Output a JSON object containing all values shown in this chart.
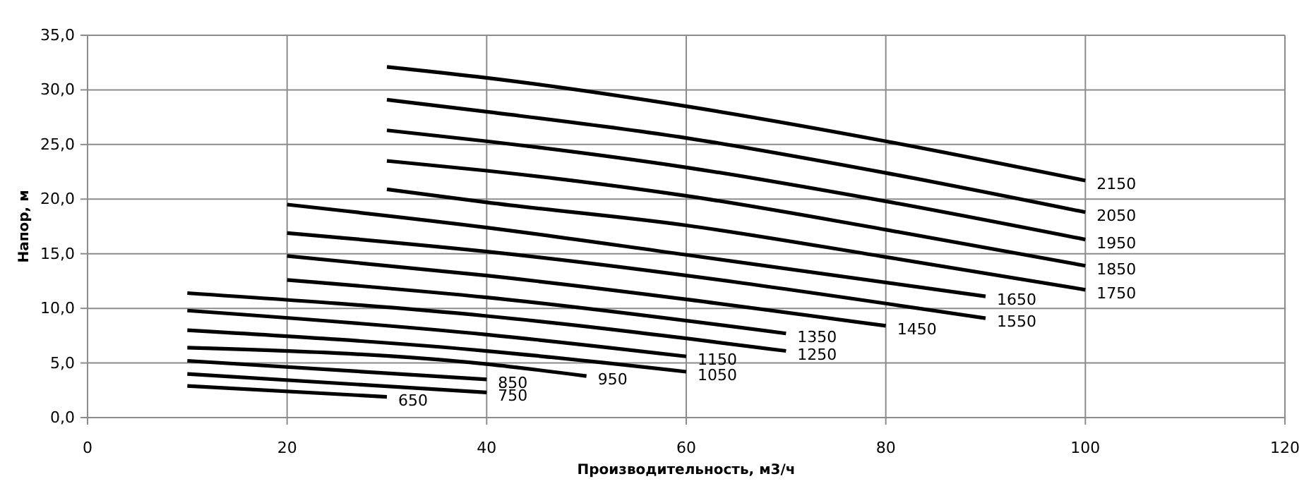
{
  "chart_data": {
    "type": "line",
    "xlabel": "Производительность,  м3/ч",
    "ylabel": "Напор, м",
    "xlim": [
      0,
      120
    ],
    "xticks": [
      0,
      20,
      40,
      60,
      80,
      100,
      120
    ],
    "ylim": [
      0,
      35
    ],
    "yticks": [
      {
        "value": 0,
        "label": "0,0"
      },
      {
        "value": 5,
        "label": "5,0"
      },
      {
        "value": 10,
        "label": "10,0"
      },
      {
        "value": 15,
        "label": "15,0"
      },
      {
        "value": 20,
        "label": "20,0"
      },
      {
        "value": 25,
        "label": "25,0"
      },
      {
        "value": 30,
        "label": "30,0"
      },
      {
        "value": 35,
        "label": "35,0"
      }
    ],
    "grid": true,
    "legend": false,
    "marker": "none",
    "line_style": "solid",
    "series": [
      {
        "name": "650",
        "color": "#000000",
        "x": [
          10,
          30
        ],
        "values": [
          2.9,
          1.9
        ]
      },
      {
        "name": "750",
        "color": "#000000",
        "x": [
          10,
          40
        ],
        "values": [
          4.0,
          2.3
        ]
      },
      {
        "name": "850",
        "color": "#000000",
        "x": [
          10,
          40
        ],
        "values": [
          5.2,
          3.5
        ]
      },
      {
        "name": "950",
        "color": "#000000",
        "x": [
          10,
          40,
          50
        ],
        "values": [
          6.4,
          4.9,
          3.8
        ]
      },
      {
        "name": "1050",
        "color": "#000000",
        "x": [
          10,
          40,
          60
        ],
        "values": [
          8.0,
          6.1,
          4.2
        ]
      },
      {
        "name": "1150",
        "color": "#000000",
        "x": [
          10,
          40,
          60
        ],
        "values": [
          9.8,
          7.6,
          5.6
        ]
      },
      {
        "name": "1250",
        "color": "#000000",
        "x": [
          10,
          40,
          70
        ],
        "values": [
          11.4,
          9.3,
          6.1
        ]
      },
      {
        "name": "1350",
        "color": "#000000",
        "x": [
          20,
          40,
          70
        ],
        "values": [
          12.6,
          11.0,
          7.7
        ]
      },
      {
        "name": "1450",
        "color": "#000000",
        "x": [
          20,
          40,
          80
        ],
        "values": [
          14.8,
          13.0,
          8.4
        ]
      },
      {
        "name": "1550",
        "color": "#000000",
        "x": [
          20,
          40,
          90
        ],
        "values": [
          16.9,
          15.2,
          9.1
        ]
      },
      {
        "name": "1650",
        "color": "#000000",
        "x": [
          20,
          40,
          60,
          90
        ],
        "values": [
          19.5,
          17.4,
          14.9,
          11.1
        ]
      },
      {
        "name": "1750",
        "color": "#000000",
        "x": [
          30,
          40,
          60,
          80,
          100
        ],
        "values": [
          20.9,
          19.7,
          17.6,
          14.7,
          11.7
        ]
      },
      {
        "name": "1850",
        "color": "#000000",
        "x": [
          30,
          40,
          60,
          80,
          100
        ],
        "values": [
          23.5,
          22.6,
          20.3,
          17.2,
          13.9
        ]
      },
      {
        "name": "1950",
        "color": "#000000",
        "x": [
          30,
          40,
          60,
          80,
          100
        ],
        "values": [
          26.3,
          25.3,
          22.9,
          19.8,
          16.3
        ]
      },
      {
        "name": "2050",
        "color": "#000000",
        "x": [
          30,
          40,
          60,
          80,
          100
        ],
        "values": [
          29.1,
          28.0,
          25.6,
          22.4,
          18.8
        ]
      },
      {
        "name": "2150",
        "color": "#000000",
        "x": [
          30,
          40,
          60,
          80,
          100
        ],
        "values": [
          32.1,
          31.1,
          28.5,
          25.3,
          21.7
        ]
      }
    ]
  }
}
